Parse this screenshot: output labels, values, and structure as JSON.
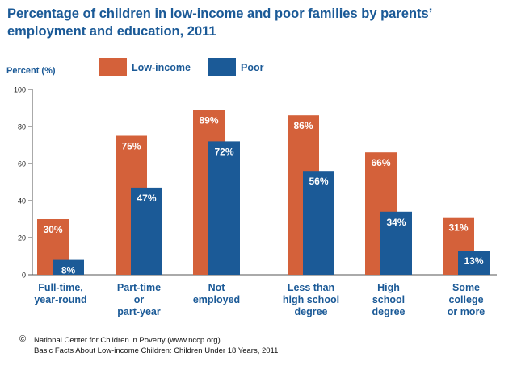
{
  "title": "Percentage of children in low-income and poor families by parents’ employment and education, 2011",
  "footer": {
    "copyright_symbol": "©",
    "line1": "National Center for Children in Poverty (www.nccp.org)",
    "line2": "Basic Facts About Low-income Children: Children Under 18 Years, 2011"
  },
  "colors": {
    "low_income": "#d4613a",
    "poor": "#1b5a97",
    "title": "#1b5a97"
  },
  "chart_data": {
    "type": "bar",
    "title": "Percentage of children in low-income and poor families by parents’ employment and education, 2011",
    "ylabel": "Percent (%)",
    "xlabel": "",
    "ylim": [
      0,
      100
    ],
    "yticks": [
      0,
      20,
      40,
      60,
      80,
      100
    ],
    "grid": false,
    "legend": "top",
    "categories": [
      [
        "Full-time,",
        "year-round"
      ],
      [
        "Part-time",
        "or",
        "part-year"
      ],
      [
        "Not",
        "employed"
      ],
      [
        "Less than",
        "high school",
        "degree"
      ],
      [
        "High",
        "school",
        "degree"
      ],
      [
        "Some",
        "college",
        "or more"
      ]
    ],
    "series": [
      {
        "name": "Low-income",
        "values": [
          30,
          75,
          89,
          86,
          66,
          31
        ],
        "labels": [
          "30%",
          "75%",
          "89%",
          "86%",
          "66%",
          "31%"
        ]
      },
      {
        "name": "Poor",
        "values": [
          8,
          47,
          72,
          56,
          34,
          13
        ],
        "labels": [
          "8%",
          "47%",
          "72%",
          "56%",
          "34%",
          "13%"
        ]
      }
    ]
  }
}
